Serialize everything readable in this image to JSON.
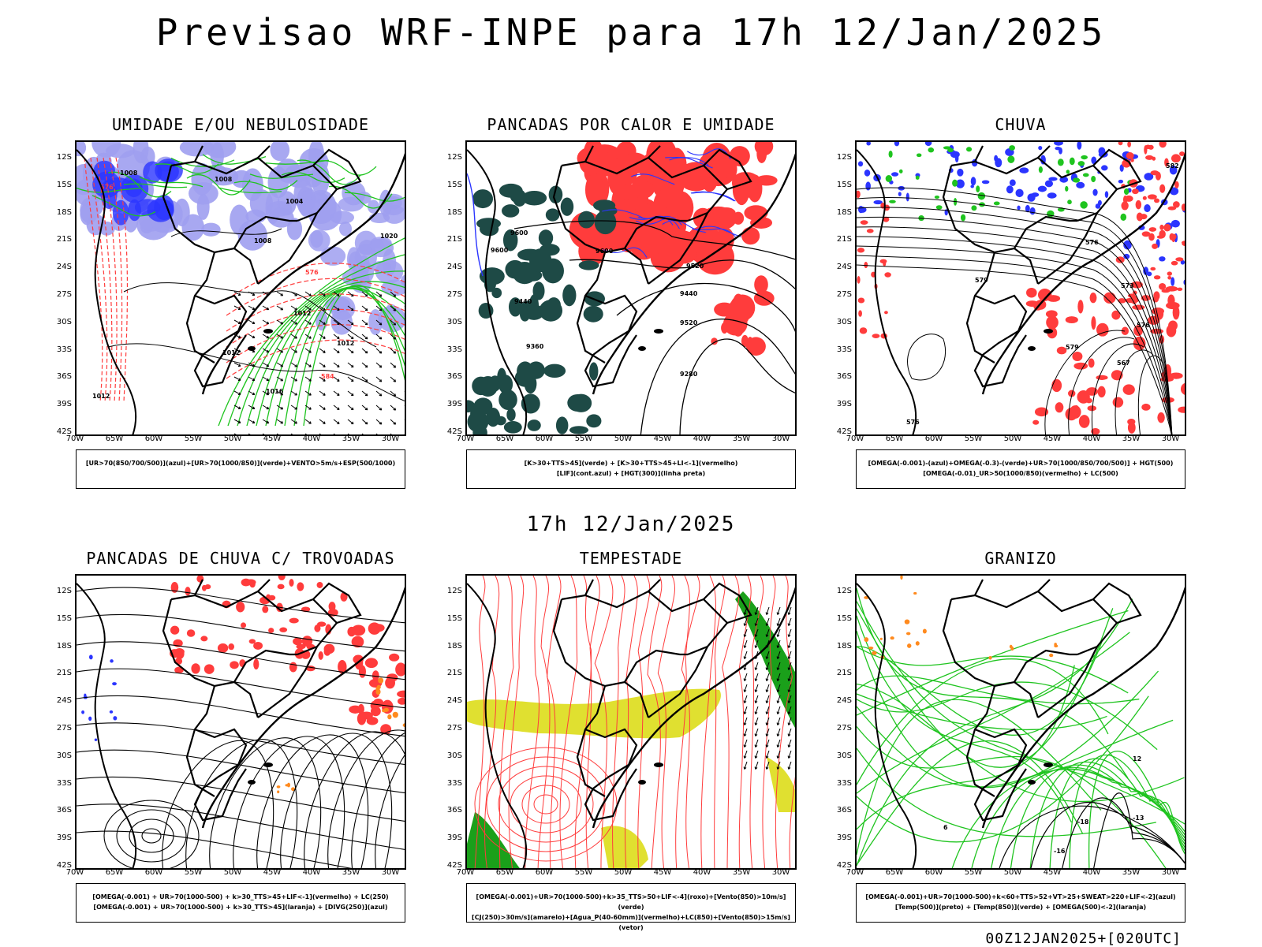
{
  "main_title": "Previsao WRF-INPE  para 17h 12/Jan/2025",
  "mid_date": "17h 12/Jan/2025",
  "footer_stamp": "00Z12JAN2025+[020UTC]",
  "lat_ticks": [
    "12S",
    "15S",
    "18S",
    "21S",
    "24S",
    "27S",
    "30S",
    "33S",
    "36S",
    "39S",
    "42S"
  ],
  "lon_ticks": [
    "70W",
    "65W",
    "60W",
    "55W",
    "50W",
    "45W",
    "40W",
    "35W",
    "30W"
  ],
  "colors": {
    "green": "#1fc41f",
    "red": "#ff3c3c",
    "blue": "#2b35ff",
    "lavender": "#9f9ff0",
    "darkteal": "#1e4a46",
    "yellow": "#e0e030",
    "orange": "#ff8a1e",
    "purple": "#b040e0"
  },
  "panels": [
    {
      "title": "UMIDADE E/OU NEBULOSIDADE",
      "legend": [
        "[UR>70(850/700/500)](azul)+[UR>70(1000/850)](verde)+VENTO>5m/s+ESP(500/1000)"
      ],
      "contour_labels": [
        "1008",
        "1008",
        "1004",
        "1008",
        "1012",
        "1012",
        "1012",
        "1016",
        "1020",
        "1012",
        "576",
        "576",
        "584"
      ]
    },
    {
      "title": "PANCADAS POR CALOR E UMIDADE",
      "legend": [
        "[K>30+TTS>45](verde) + [K>30+TTS>45+LI<-1](vermelho)",
        "[LIF](cont.azul) + [HGT(300)](linha preta)"
      ],
      "contour_labels": [
        "9600",
        "9600",
        "9520",
        "9440",
        "9520",
        "9440",
        "9360",
        "9280",
        "9600"
      ]
    },
    {
      "title": "CHUVA",
      "legend": [
        "[OMEGA(-0.001)-(azul)+OMEGA(-0.3)-(verde)+UR>70(1000/850/700/500)] + HGT(500)",
        "[OMEGA(-0.01)_UR>50(1000/850)(vermelho) + LC(500)"
      ],
      "contour_labels": [
        "576",
        "576",
        "573",
        "579",
        "567",
        "579",
        "576",
        "582"
      ]
    },
    {
      "title": "PANCADAS DE CHUVA C/ TROVOADAS",
      "legend": [
        "[OMEGA(-0.001) + UR>70(1000-500) + k>30_TTS>45+LIF<-1](vermelho) + LC(250)",
        "[OMEGA(-0.001) + UR>70(1000-500) + k>30_TTS>45](laranja) + [DIVG(250)](azul)"
      ],
      "contour_labels": []
    },
    {
      "title": "TEMPESTADE",
      "legend": [
        "[OMEGA(-0.001)+UR>70(1000-500)+k>35_TTS>50+LIF<-4](roxo)+[Vento(850)>10m/s](verde)",
        "[CJ(250)>30m/s](amarelo)+[Agua_P(40-60mm)](vermelho)+LC(850)+[Vento(850)>15m/s](vetor)"
      ],
      "contour_labels": []
    },
    {
      "title": "GRANIZO",
      "legend": [
        "[OMEGA(-0.001)+UR>70(1000-500)+k<60+TTS>52+VT>25+SWEAT>220+LIF<-2](azul)",
        "[Temp(500)](preto) + [Temp(850)](verde) + [OMEGA(500)<-2](laranja)"
      ],
      "contour_labels": [
        "12",
        "-13",
        "-18",
        "-16",
        "6"
      ]
    }
  ]
}
